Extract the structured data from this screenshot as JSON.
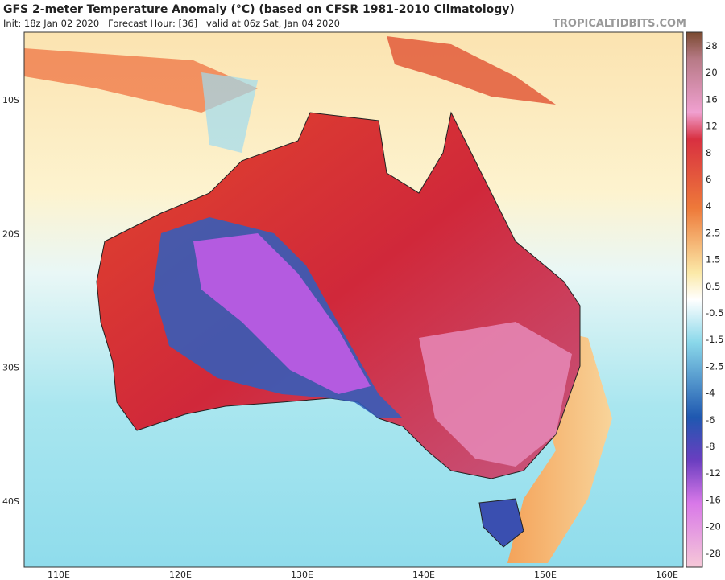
{
  "header": {
    "title": "GFS 2-meter Temperature Anomaly (°C) (based on CFSR 1981-2010 Climatology)",
    "subtitle": "Init: 18z Jan 02 2020   Forecast Hour: [36]   valid at 06z Sat, Jan 04 2020",
    "watermark": "TROPICALTIDBITS.COM"
  },
  "map": {
    "lat_labels": [
      "10S",
      "20S",
      "30S",
      "40S"
    ],
    "lon_labels": [
      "110E",
      "120E",
      "130E",
      "140E",
      "150E",
      "160E"
    ]
  },
  "colorbar": {
    "labels": [
      "28",
      "20",
      "16",
      "12",
      "8",
      "6",
      "4",
      "2.5",
      "1.5",
      "0.5",
      "-0.5",
      "-1.5",
      "-2.5",
      "-4",
      "-6",
      "-8",
      "-12",
      "-16",
      "-20",
      "-28"
    ]
  }
}
